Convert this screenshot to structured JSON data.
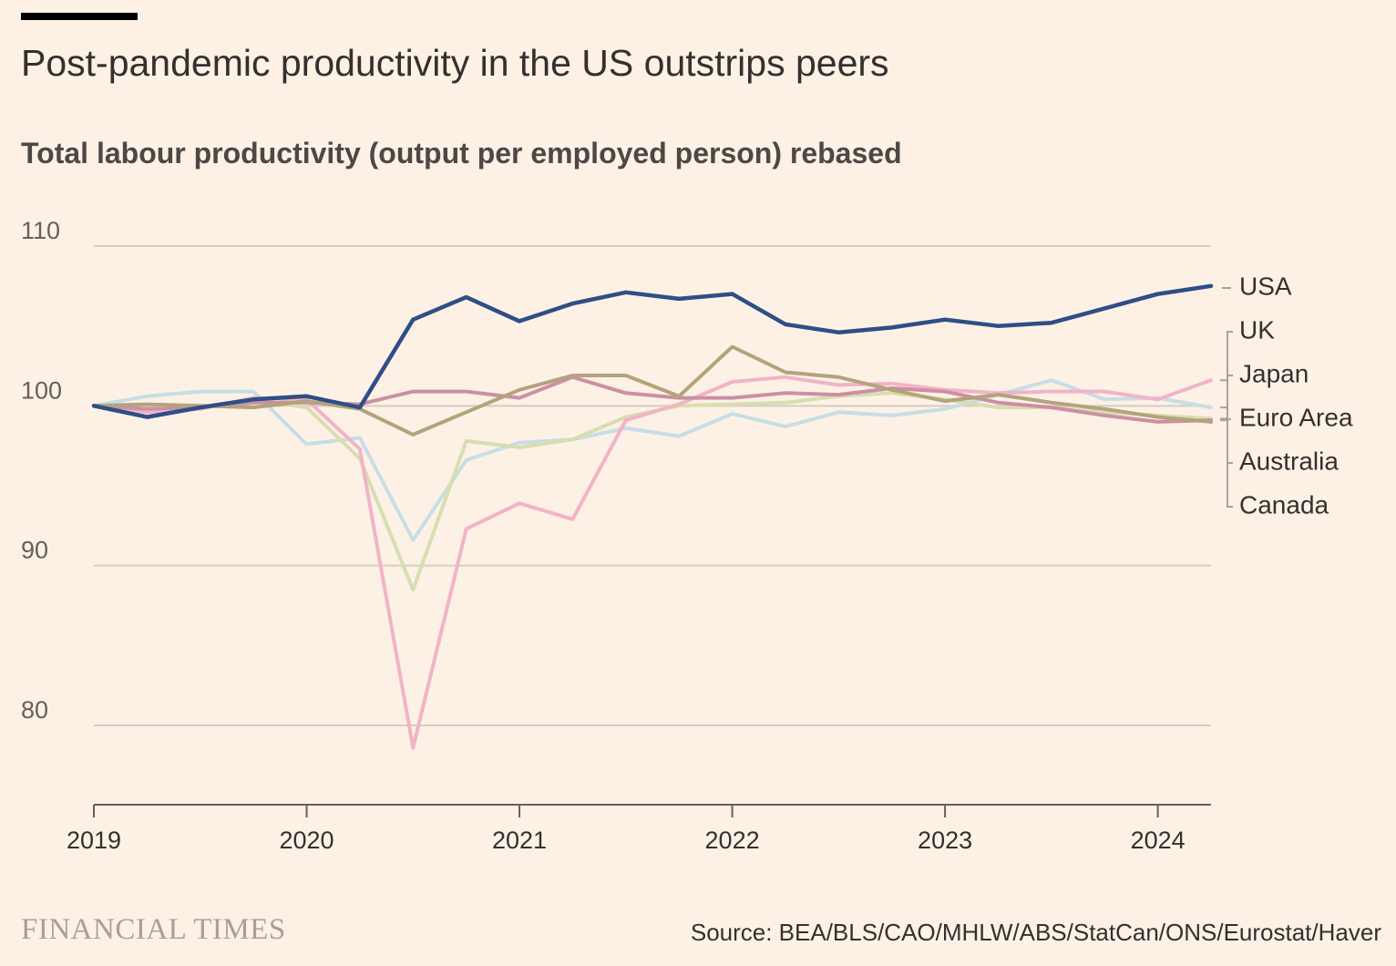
{
  "header": {
    "title": "Post-pandemic productivity in the US outstrips peers",
    "subtitle": "Total labour productivity (output per employed person) rebased"
  },
  "footer": {
    "brand": "FINANCIAL TIMES",
    "source": "Source: BEA/BLS/CAO/MHLW/ABS/StatCan/ONS/Eurostat/Haver"
  },
  "colors": {
    "background": "#FDF1E6",
    "gridline": "#D5CCC2",
    "axis": "#66605C",
    "text": "#33302E"
  },
  "chart_data": {
    "type": "line",
    "title": "Post-pandemic productivity in the US outstrips peers",
    "subtitle": "Total labour productivity (output per employed person) rebased",
    "x": [
      2019.0,
      2019.25,
      2019.5,
      2019.75,
      2020.0,
      2020.25,
      2020.5,
      2020.75,
      2021.0,
      2021.25,
      2021.5,
      2021.75,
      2022.0,
      2022.25,
      2022.5,
      2022.75,
      2023.0,
      2023.25,
      2023.5,
      2023.75,
      2024.0,
      2024.25
    ],
    "x_ticks": [
      2019,
      2020,
      2021,
      2022,
      2023,
      2024
    ],
    "x_tick_labels": [
      "2019",
      "2020",
      "2021",
      "2022",
      "2023",
      "2024"
    ],
    "xlim": [
      2019,
      2024.25
    ],
    "y_ticks": [
      80,
      90,
      100,
      110
    ],
    "y_tick_labels": [
      "80",
      "90",
      "100",
      "110"
    ],
    "ylim": [
      75,
      110
    ],
    "grid": true,
    "legend": "right, labels at line ends",
    "series": [
      {
        "name": "Australia",
        "color": "#C8DDE6",
        "values": [
          100,
          100.6,
          100.9,
          100.9,
          97.6,
          98.0,
          91.6,
          96.6,
          97.7,
          97.9,
          98.6,
          98.1,
          99.5,
          98.7,
          99.6,
          99.4,
          99.8,
          100.7,
          101.6,
          100.4,
          100.5,
          99.9
        ]
      },
      {
        "name": "Canada",
        "color": "#D7DEB0",
        "values": [
          100,
          100.0,
          99.9,
          100.4,
          99.9,
          96.7,
          88.5,
          97.8,
          97.4,
          97.9,
          99.3,
          100.0,
          100.1,
          100.2,
          100.6,
          100.8,
          100.4,
          99.9,
          99.9,
          99.6,
          99.4,
          99.2
        ]
      },
      {
        "name": "UK",
        "color": "#F2B3C6",
        "values": [
          100,
          99.6,
          99.8,
          100.5,
          100.4,
          97.3,
          78.6,
          92.3,
          93.9,
          92.9,
          99.1,
          100.1,
          101.5,
          101.8,
          101.3,
          101.4,
          101.0,
          100.8,
          100.9,
          100.9,
          100.4,
          101.6
        ]
      },
      {
        "name": "Japan",
        "color": "#CC8FA3",
        "values": [
          100,
          99.8,
          99.9,
          100.2,
          100.2,
          100.1,
          100.9,
          100.9,
          100.5,
          101.8,
          100.8,
          100.5,
          100.5,
          100.8,
          100.7,
          101.1,
          100.9,
          100.2,
          99.9,
          99.4,
          99.0,
          99.1
        ]
      },
      {
        "name": "Euro Area",
        "color": "#B3A37C",
        "values": [
          100,
          100.1,
          100.0,
          99.9,
          100.3,
          99.8,
          98.2,
          99.6,
          101.0,
          101.9,
          101.9,
          100.6,
          103.7,
          102.1,
          101.8,
          101.0,
          100.3,
          100.7,
          100.2,
          99.8,
          99.3,
          99.0
        ]
      },
      {
        "name": "USA",
        "color": "#2E4E86",
        "values": [
          100,
          99.3,
          99.9,
          100.4,
          100.6,
          99.9,
          105.4,
          106.8,
          105.3,
          106.4,
          107.1,
          106.7,
          107.0,
          105.1,
          104.6,
          104.9,
          105.4,
          105.0,
          105.2,
          106.1,
          107.0,
          107.5
        ]
      }
    ],
    "labels": [
      {
        "name": "USA",
        "value": 107.5
      },
      {
        "name": "UK",
        "value": 101.6
      },
      {
        "name": "Japan",
        "value": 99.1
      },
      {
        "name": "Euro Area",
        "value": 99.0
      },
      {
        "name": "Australia",
        "value": 99.9
      },
      {
        "name": "Canada",
        "value": 99.2
      }
    ]
  }
}
